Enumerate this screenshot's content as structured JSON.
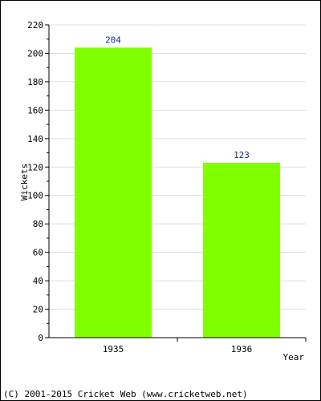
{
  "chart_data": {
    "type": "bar",
    "categories": [
      "1935",
      "1936"
    ],
    "values": [
      204,
      123
    ],
    "title": "",
    "xlabel": "Year",
    "ylabel": "Wickets",
    "ylim": [
      0,
      220
    ],
    "ytick_step": 20,
    "grid": true,
    "legend": "none",
    "bar_color": "#80ff00",
    "label_color": "#1a2a8a"
  },
  "footer": {
    "copyright": "(C) 2001-2015 Cricket Web (www.cricketweb.net)"
  }
}
